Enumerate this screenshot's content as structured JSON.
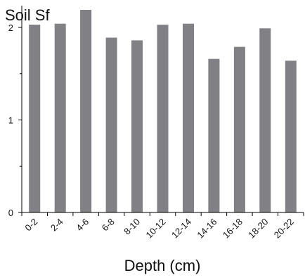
{
  "chart_data": {
    "type": "bar",
    "title": "Soil Sf",
    "xlabel": "Depth (cm)",
    "ylabel": "",
    "categories": [
      "0-2",
      "2-4",
      "4-6",
      "6-8",
      "8-10",
      "10-12",
      "12-14",
      "14-16",
      "16-18",
      "18-20",
      "20-22"
    ],
    "values": [
      2.03,
      2.04,
      2.19,
      1.89,
      1.86,
      2.03,
      2.04,
      1.66,
      1.79,
      1.99,
      1.64
    ],
    "ylim": [
      0,
      2.2
    ],
    "yticks": [
      "0",
      "1",
      "2"
    ],
    "bar_color": "#808085",
    "grid": false,
    "legend": "none"
  }
}
